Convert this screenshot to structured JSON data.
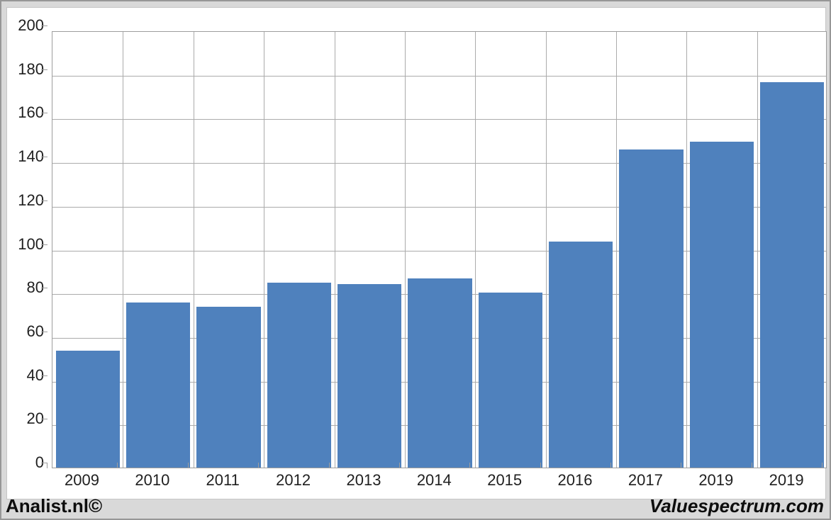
{
  "footer": {
    "left": "Analist.nl©",
    "right": "Valuespectrum.com"
  },
  "chart_data": {
    "type": "bar",
    "categories": [
      "2009",
      "2010",
      "2011",
      "2012",
      "2013",
      "2014",
      "2015",
      "2016",
      "2017",
      "2019",
      "2019"
    ],
    "values": [
      53.5,
      75.5,
      73.5,
      84.5,
      84,
      86.5,
      80,
      103.5,
      145.5,
      149,
      176.5
    ],
    "title": "",
    "xlabel": "",
    "ylabel": "",
    "ylim": [
      0,
      200
    ],
    "yticks": [
      0,
      20,
      40,
      60,
      80,
      100,
      120,
      140,
      160,
      180,
      200
    ],
    "grid": true,
    "legend": "none",
    "bar_color": "#4f81bd",
    "gridline_color": "#ababab",
    "plot_bg": "#ffffff",
    "frame_bg": "#d9d9d9",
    "text_color": "#1f1f1f"
  }
}
